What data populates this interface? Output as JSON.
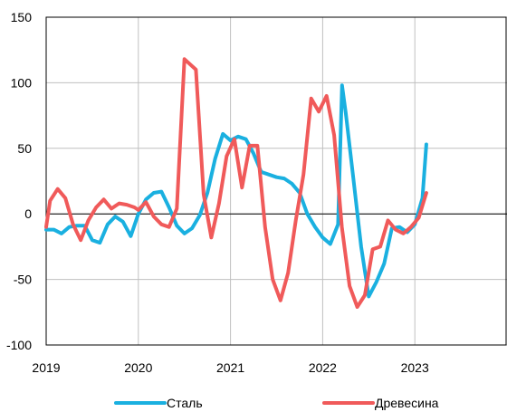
{
  "chart_data": {
    "type": "line",
    "title": "",
    "xlabel": "",
    "ylabel": "",
    "xlim": [
      2019,
      2024
    ],
    "ylim": [
      -100,
      150
    ],
    "yticks": [
      150,
      100,
      50,
      0,
      -50,
      -100
    ],
    "ytick_labels": [
      "150",
      "100",
      "50",
      "0",
      "-50",
      "-100"
    ],
    "xticks": [
      2019,
      2020,
      2021,
      2022,
      2023
    ],
    "xtick_labels": [
      "2019",
      "2020",
      "2021",
      "2022",
      "2023"
    ],
    "grid": true,
    "legend_position": "bottom",
    "series": [
      {
        "name": "Сталь",
        "color": "#1ab0e0",
        "x": [
          2019.0,
          2019.083,
          2019.167,
          2019.25,
          2019.333,
          2019.417,
          2019.5,
          2019.583,
          2019.667,
          2019.75,
          2019.833,
          2019.917,
          2020.0,
          2020.083,
          2020.167,
          2020.25,
          2020.333,
          2020.417,
          2020.5,
          2020.583,
          2020.667,
          2020.75,
          2020.833,
          2020.917,
          2021.0,
          2021.083,
          2021.167,
          2021.25,
          2021.333,
          2021.417,
          2021.5,
          2021.583,
          2021.667,
          2021.75,
          2021.833,
          2021.917,
          2022.0,
          2022.083,
          2022.167,
          2022.21,
          2022.25,
          2022.333,
          2022.417,
          2022.5,
          2022.583,
          2022.667,
          2022.75,
          2022.833,
          2022.917,
          2023.0,
          2023.083,
          2023.125
        ],
        "y": [
          -12,
          -12,
          -15,
          -10,
          -9,
          -9,
          -20,
          -22,
          -8,
          -2,
          -6,
          -17,
          0,
          11,
          16,
          17,
          5,
          -9,
          -15,
          -11,
          -1,
          16,
          42,
          61,
          56,
          59,
          57,
          46,
          32,
          30,
          28,
          27,
          23,
          16,
          0,
          -10,
          -18,
          -23,
          -8,
          98,
          77,
          27,
          -25,
          -63,
          -52,
          -38,
          -11,
          -10,
          -14,
          -8,
          12,
          53
        ]
      },
      {
        "name": "Древесина",
        "color": "#f05a5a",
        "x": [
          2019.0,
          2019.042,
          2019.125,
          2019.208,
          2019.292,
          2019.375,
          2019.458,
          2019.542,
          2019.625,
          2019.708,
          2019.792,
          2019.875,
          2019.958,
          2020.0,
          2020.083,
          2020.167,
          2020.25,
          2020.333,
          2020.417,
          2020.5,
          2020.625,
          2020.708,
          2020.792,
          2020.875,
          2020.958,
          2021.042,
          2021.125,
          2021.208,
          2021.292,
          2021.375,
          2021.458,
          2021.542,
          2021.625,
          2021.708,
          2021.792,
          2021.875,
          2021.958,
          2022.042,
          2022.125,
          2022.208,
          2022.292,
          2022.375,
          2022.458,
          2022.542,
          2022.625,
          2022.708,
          2022.792,
          2022.875,
          2022.958,
          2023.042,
          2023.125
        ],
        "y": [
          -10,
          10,
          19,
          12,
          -8,
          -20,
          -5,
          5,
          11,
          4,
          8,
          7,
          5,
          3,
          9,
          -2,
          -8,
          -10,
          4,
          118,
          110,
          15,
          -18,
          8,
          44,
          57,
          20,
          52,
          52,
          -10,
          -50,
          -66,
          -45,
          -5,
          30,
          88,
          78,
          90,
          60,
          -10,
          -55,
          -71,
          -62,
          -27,
          -25,
          -5,
          -12,
          -15,
          -10,
          -3,
          16
        ]
      }
    ]
  }
}
